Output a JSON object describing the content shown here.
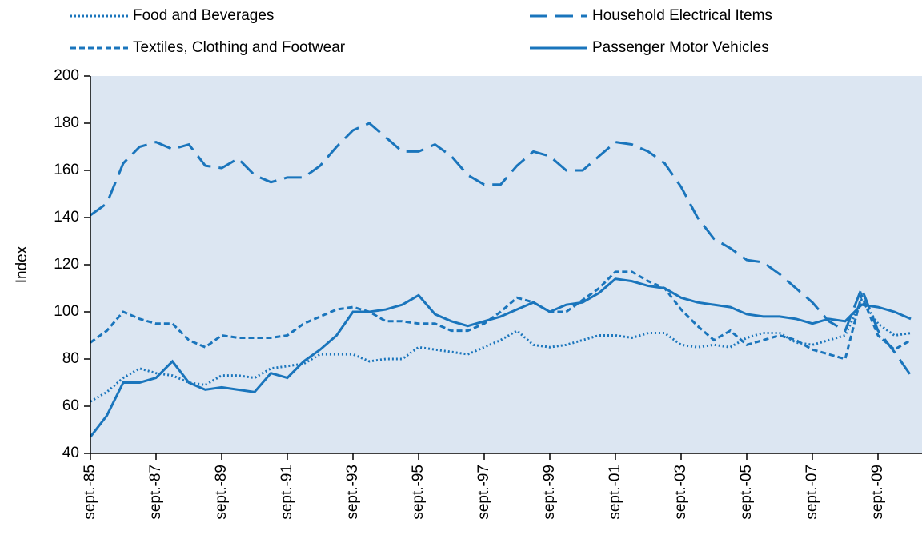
{
  "chart_data": {
    "type": "line",
    "y_label": "Index",
    "categories": [
      "sept.-85",
      null,
      null,
      null,
      "sept.-87",
      null,
      null,
      null,
      "sept.-89",
      null,
      null,
      null,
      "sept.-91",
      null,
      null,
      null,
      "sept.-93",
      null,
      null,
      null,
      "sept.-95",
      null,
      null,
      null,
      "sept.-97",
      null,
      null,
      null,
      "sept.-99",
      null,
      null,
      null,
      "sept.-01",
      null,
      null,
      null,
      "sept.-03",
      null,
      null,
      null,
      "sept.-05",
      null,
      null,
      null,
      "sept.-07",
      null,
      null,
      null,
      "sept.-09",
      null,
      null
    ],
    "series": [
      {
        "name": "Food and Beverages",
        "color": "#1a75bc",
        "dash": "dotted",
        "values": [
          62,
          66,
          72,
          76,
          74,
          73,
          70,
          69,
          73,
          73,
          72,
          76,
          77,
          78,
          82,
          82,
          82,
          79,
          80,
          80,
          85,
          84,
          83,
          82,
          85,
          88,
          92,
          86,
          85,
          86,
          88,
          90,
          90,
          89,
          91,
          91,
          86,
          85,
          86,
          85,
          89,
          91,
          91,
          87,
          86,
          88,
          90,
          105,
          95,
          90,
          91
        ]
      },
      {
        "name": "Household Electrical Items",
        "color": "#1a75bc",
        "dash": "long-dashed",
        "values": [
          141,
          146,
          163,
          170,
          172,
          169,
          171,
          162,
          161,
          165,
          158,
          155,
          157,
          157,
          162,
          170,
          177,
          180,
          174,
          168,
          168,
          171,
          166,
          158,
          154,
          154,
          162,
          168,
          166,
          160,
          160,
          166,
          172,
          171,
          168,
          163,
          153,
          140,
          131,
          127,
          122,
          121,
          116,
          110,
          104,
          96,
          92,
          110,
          92,
          83,
          73
        ]
      },
      {
        "name": "Textiles, Clothing and Footwear",
        "color": "#1a75bc",
        "dash": "dashed",
        "values": [
          87,
          92,
          100,
          97,
          95,
          95,
          88,
          85,
          90,
          89,
          89,
          89,
          90,
          95,
          98,
          101,
          102,
          100,
          96,
          96,
          95,
          95,
          92,
          92,
          95,
          100,
          106,
          104,
          100,
          100,
          105,
          110,
          117,
          117,
          113,
          110,
          101,
          94,
          88,
          92,
          86,
          88,
          90,
          88,
          84,
          82,
          80,
          107,
          90,
          84,
          88
        ]
      },
      {
        "name": "Passenger Motor Vehicles",
        "color": "#1a75bc",
        "dash": "solid",
        "values": [
          47,
          56,
          70,
          70,
          72,
          79,
          70,
          67,
          68,
          67,
          66,
          74,
          72,
          79,
          84,
          90,
          100,
          100,
          101,
          103,
          107,
          99,
          96,
          94,
          96,
          98,
          101,
          104,
          100,
          103,
          104,
          108,
          114,
          113,
          111,
          110,
          106,
          104,
          103,
          102,
          99,
          98,
          98,
          97,
          95,
          97,
          96,
          103,
          102,
          100,
          97
        ]
      }
    ],
    "ylim": [
      40,
      200
    ],
    "yticks": [
      40,
      60,
      80,
      100,
      120,
      140,
      160,
      180,
      200
    ],
    "plot_background": "#dce6f2",
    "grid": false
  }
}
